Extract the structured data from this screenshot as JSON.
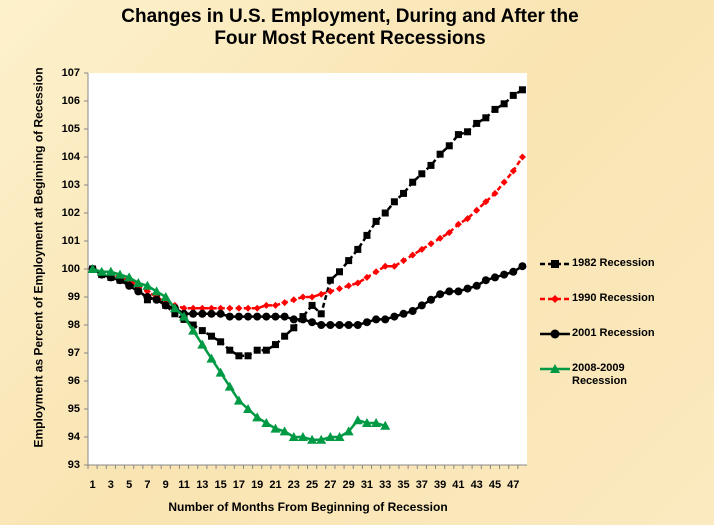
{
  "chart_data": {
    "type": "line",
    "title": "Changes in U.S. Employment, During and After the Four Most Recent Recessions",
    "x_label": "Number of Months From Beginning of Recession",
    "y_label": "Employment as Percent of Employment at Beginning of Recession",
    "categories": [
      1,
      null,
      3,
      null,
      5,
      null,
      7,
      null,
      9,
      null,
      11,
      null,
      13,
      null,
      15,
      null,
      17,
      null,
      19,
      null,
      21,
      null,
      23,
      null,
      25,
      null,
      27,
      null,
      29,
      null,
      31,
      null,
      33,
      null,
      35,
      null,
      37,
      null,
      39,
      null,
      41,
      null,
      43,
      null,
      45,
      null,
      47,
      null
    ],
    "ylim": [
      93,
      107
    ],
    "yticks": [
      93,
      94,
      95,
      96,
      97,
      98,
      99,
      100,
      101,
      102,
      103,
      104,
      105,
      106,
      107
    ],
    "grid": false,
    "legend": "right",
    "series": [
      {
        "name": "1982 Recession",
        "color": "#000000",
        "dash": true,
        "marker": "square",
        "values": [
          100,
          99.8,
          99.7,
          99.6,
          99.5,
          99.3,
          98.9,
          99.0,
          98.7,
          98.4,
          98.2,
          98.0,
          97.8,
          97.6,
          97.4,
          97.1,
          96.9,
          96.9,
          97.1,
          97.1,
          97.3,
          97.6,
          97.9,
          98.3,
          98.7,
          98.4,
          99.6,
          99.9,
          100.3,
          100.7,
          101.2,
          101.7,
          102.0,
          102.4,
          102.7,
          103.1,
          103.4,
          103.7,
          104.1,
          104.4,
          104.8,
          104.9,
          105.2,
          105.4,
          105.7,
          105.9,
          106.2,
          106.4
        ]
      },
      {
        "name": "1990 Recession",
        "color": "#ff0000",
        "dash": true,
        "marker": "diamond",
        "values": [
          100,
          99.9,
          99.8,
          99.7,
          99.6,
          99.4,
          99.2,
          99.0,
          98.8,
          98.7,
          98.6,
          98.6,
          98.6,
          98.6,
          98.6,
          98.6,
          98.6,
          98.6,
          98.6,
          98.7,
          98.7,
          98.8,
          98.9,
          99.0,
          99.0,
          99.1,
          99.2,
          99.3,
          99.4,
          99.5,
          99.7,
          99.9,
          100.1,
          100.1,
          100.3,
          100.5,
          100.7,
          100.9,
          101.1,
          101.3,
          101.6,
          101.8,
          102.1,
          102.4,
          102.7,
          103.1,
          103.5,
          104.0
        ]
      },
      {
        "name": "2001 Recession",
        "color": "#000000",
        "dash": false,
        "marker": "circle",
        "values": [
          100,
          99.8,
          99.7,
          99.6,
          99.4,
          99.2,
          99.0,
          98.9,
          98.7,
          98.6,
          98.4,
          98.4,
          98.4,
          98.4,
          98.4,
          98.3,
          98.3,
          98.3,
          98.3,
          98.3,
          98.3,
          98.3,
          98.2,
          98.2,
          98.1,
          98.0,
          98.0,
          98.0,
          98.0,
          98.0,
          98.1,
          98.2,
          98.2,
          98.3,
          98.4,
          98.5,
          98.7,
          98.9,
          99.1,
          99.2,
          99.2,
          99.3,
          99.4,
          99.6,
          99.7,
          99.8,
          99.9,
          100.1
        ]
      },
      {
        "name": "2008-2009 Recession",
        "color": "#009a44",
        "dash": false,
        "marker": "triangle",
        "values": [
          100,
          99.9,
          99.9,
          99.8,
          99.7,
          99.5,
          99.4,
          99.2,
          99.0,
          98.6,
          98.3,
          97.8,
          97.3,
          96.8,
          96.3,
          95.8,
          95.3,
          95.0,
          94.7,
          94.5,
          94.3,
          94.2,
          94.0,
          94.0,
          93.9,
          93.9,
          94.0,
          94.0,
          94.2,
          94.6,
          94.5,
          94.5,
          94.4,
          null,
          null,
          null,
          null,
          null,
          null,
          null,
          null,
          null,
          null,
          null,
          null,
          null,
          null,
          null
        ]
      }
    ]
  }
}
